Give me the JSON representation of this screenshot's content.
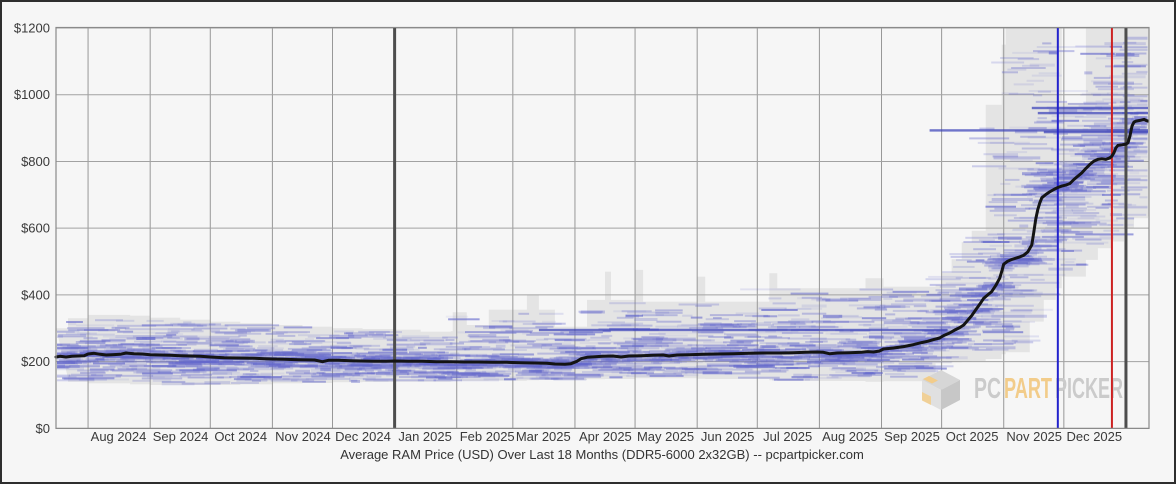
{
  "title": "Average RAM Price (USD) Over Last 18 Months (DDR5-6000 2x32GB) -- pcpartpicker.com",
  "watermark": {
    "pc": "PC",
    "part": "PART",
    "picker": "PICKER"
  },
  "colors": {
    "background": "#f6f6f6",
    "frame_border": "#2e2e2e",
    "grid": "#979797",
    "grid_h": "#a2a2a2",
    "plot_border": "#8a8a8a",
    "axis_text": "#3a3a3a",
    "avg_line": "#141414",
    "band": "#000000",
    "band_opacity": 0.072,
    "tick": "#6468cc",
    "tick_strong": "#3a41b8",
    "year_line": "#4d4d4d",
    "blue_marker": "#2222cc",
    "red_marker": "#cc2222",
    "watermark_gray": "#cbcbcb",
    "watermark_orange": "#f2cc8a"
  },
  "chart_data": {
    "type": "line",
    "title": "Average RAM Price (USD) Over Last 18 Months (DDR5-6000 2x32GB) -- pcpartpicker.com",
    "x_tick_labels": [
      "Aug 2024",
      "Sep 2024",
      "Oct 2024",
      "Nov 2024",
      "Dec 2024",
      "Jan 2025",
      "Feb 2025",
      "Mar 2025",
      "Apr 2025",
      "May 2025",
      "Jun 2025",
      "Jul 2025",
      "Aug 2025",
      "Sep 2025",
      "Oct 2025",
      "Nov 2025",
      "Dec 2025"
    ],
    "y_tick_labels": [
      "$0",
      "$200",
      "$400",
      "$600",
      "$800",
      "$1000",
      "$1200"
    ],
    "ylim": [
      0,
      1200
    ],
    "y_tick_step": 200,
    "x_unit": "days from chart start (mid-Jul 2024), 546 days total",
    "month_boundary_days": [
      17,
      48,
      78,
      109,
      139,
      170,
      201,
      229,
      260,
      290,
      321,
      351,
      382,
      413,
      443,
      474,
      504,
      535
    ],
    "grid": true,
    "legend": "none",
    "series": [
      {
        "name": "average price (USD)",
        "type": "line",
        "points": [
          [
            1,
            214
          ],
          [
            3,
            216
          ],
          [
            6,
            214
          ],
          [
            9,
            216
          ],
          [
            12,
            217
          ],
          [
            15,
            218
          ],
          [
            17,
            223
          ],
          [
            20,
            225
          ],
          [
            23,
            222
          ],
          [
            26,
            220
          ],
          [
            29,
            221
          ],
          [
            33,
            222
          ],
          [
            36,
            226
          ],
          [
            40,
            224
          ],
          [
            44,
            223
          ],
          [
            48,
            221
          ],
          [
            53,
            220
          ],
          [
            58,
            219
          ],
          [
            63,
            218
          ],
          [
            68,
            217
          ],
          [
            73,
            216
          ],
          [
            78,
            214
          ],
          [
            85,
            212
          ],
          [
            92,
            211
          ],
          [
            100,
            210
          ],
          [
            105,
            209
          ],
          [
            109,
            208
          ],
          [
            115,
            207
          ],
          [
            122,
            206
          ],
          [
            130,
            205
          ],
          [
            134,
            200
          ],
          [
            137,
            204
          ],
          [
            142,
            204
          ],
          [
            148,
            203
          ],
          [
            153,
            202
          ],
          [
            160,
            201
          ],
          [
            166,
            201
          ],
          [
            170,
            202
          ],
          [
            177,
            201
          ],
          [
            184,
            201
          ],
          [
            191,
            200
          ],
          [
            198,
            200
          ],
          [
            205,
            199
          ],
          [
            212,
            199
          ],
          [
            219,
            198
          ],
          [
            226,
            198
          ],
          [
            233,
            197
          ],
          [
            240,
            196
          ],
          [
            246,
            195
          ],
          [
            250,
            193
          ],
          [
            255,
            192
          ],
          [
            258,
            194
          ],
          [
            261,
            201
          ],
          [
            263,
            209
          ],
          [
            266,
            213
          ],
          [
            270,
            215
          ],
          [
            274,
            216
          ],
          [
            279,
            217
          ],
          [
            283,
            214
          ],
          [
            287,
            217
          ],
          [
            293,
            218
          ],
          [
            299,
            219
          ],
          [
            304,
            220
          ],
          [
            307,
            217
          ],
          [
            311,
            220
          ],
          [
            317,
            221
          ],
          [
            324,
            222
          ],
          [
            331,
            223
          ],
          [
            339,
            224
          ],
          [
            347,
            225
          ],
          [
            355,
            226
          ],
          [
            363,
            226
          ],
          [
            369,
            227
          ],
          [
            375,
            228
          ],
          [
            381,
            229
          ],
          [
            384,
            228
          ],
          [
            387,
            224
          ],
          [
            391,
            226
          ],
          [
            397,
            227
          ],
          [
            403,
            228
          ],
          [
            406,
            230
          ],
          [
            409,
            229
          ],
          [
            412,
            232
          ],
          [
            414,
            238
          ],
          [
            419,
            241
          ],
          [
            424,
            245
          ],
          [
            429,
            251
          ],
          [
            433,
            257
          ],
          [
            436,
            261
          ],
          [
            439,
            266
          ],
          [
            442,
            271
          ],
          [
            444,
            278
          ],
          [
            447,
            286
          ],
          [
            450,
            296
          ],
          [
            452,
            302
          ],
          [
            454,
            310
          ],
          [
            456,
            324
          ],
          [
            458,
            338
          ],
          [
            460,
            355
          ],
          [
            462,
            372
          ],
          [
            464,
            390
          ],
          [
            466,
            400
          ],
          [
            468,
            410
          ],
          [
            470,
            428
          ],
          [
            472,
            450
          ],
          [
            473,
            470
          ],
          [
            474,
            492
          ],
          [
            476,
            501
          ],
          [
            478,
            506
          ],
          [
            480,
            510
          ],
          [
            482,
            514
          ],
          [
            484,
            519
          ],
          [
            486,
            529
          ],
          [
            488,
            550
          ],
          [
            489,
            588
          ],
          [
            490,
            628
          ],
          [
            491,
            656
          ],
          [
            492,
            676
          ],
          [
            493,
            691
          ],
          [
            495,
            701
          ],
          [
            497,
            709
          ],
          [
            499,
            716
          ],
          [
            501,
            722
          ],
          [
            503,
            726
          ],
          [
            505,
            729
          ],
          [
            507,
            734
          ],
          [
            509,
            746
          ],
          [
            511,
            756
          ],
          [
            513,
            766
          ],
          [
            515,
            779
          ],
          [
            517,
            791
          ],
          [
            519,
            801
          ],
          [
            521,
            806
          ],
          [
            523,
            808
          ],
          [
            525,
            806
          ],
          [
            527,
            811
          ],
          [
            528,
            816
          ],
          [
            529,
            826
          ],
          [
            530,
            841
          ],
          [
            531,
            848
          ],
          [
            533,
            850
          ],
          [
            535,
            852
          ],
          [
            536,
            856
          ],
          [
            537,
            877
          ],
          [
            538,
            906
          ],
          [
            539,
            918
          ],
          [
            540,
            921
          ],
          [
            542,
            923
          ],
          [
            544,
            926
          ],
          [
            545,
            923
          ],
          [
            546,
            921
          ]
        ]
      },
      {
        "name": "min-max listing price range (USD)",
        "type": "band",
        "points": [
          [
            1,
            150,
            300
          ],
          [
            7,
            140,
            330
          ],
          [
            17,
            135,
            340
          ],
          [
            38,
            132,
            338
          ],
          [
            48,
            130,
            332
          ],
          [
            63,
            130,
            326
          ],
          [
            78,
            130,
            320
          ],
          [
            93,
            132,
            315
          ],
          [
            109,
            135,
            310
          ],
          [
            124,
            136,
            305
          ],
          [
            139,
            138,
            300
          ],
          [
            154,
            139,
            298
          ],
          [
            170,
            140,
            296
          ],
          [
            183,
            140,
            290
          ],
          [
            198,
            141,
            291
          ],
          [
            199,
            142,
            348
          ],
          [
            206,
            142,
            310
          ],
          [
            217,
            143,
            356
          ],
          [
            236,
            144,
            400
          ],
          [
            242,
            145,
            356
          ],
          [
            250,
            145,
            305
          ],
          [
            266,
            147,
            385
          ],
          [
            275,
            148,
            470
          ],
          [
            278,
            148,
            385
          ],
          [
            290,
            150,
            475
          ],
          [
            294,
            150,
            380
          ],
          [
            321,
            149,
            455
          ],
          [
            325,
            148,
            380
          ],
          [
            357,
            144,
            465
          ],
          [
            361,
            142,
            420
          ],
          [
            405,
            140,
            450
          ],
          [
            414,
            141,
            425
          ],
          [
            440,
            195,
            430
          ],
          [
            443,
            195,
            467
          ],
          [
            448,
            198,
            507
          ],
          [
            453,
            200,
            558
          ],
          [
            458,
            202,
            592
          ],
          [
            465,
            208,
            970
          ],
          [
            473,
            222,
            1150
          ],
          [
            475,
            228,
            1205
          ],
          [
            487,
            320,
            1205
          ],
          [
            494,
            385,
            1205
          ],
          [
            500,
            420,
            1205
          ],
          [
            503,
            455,
            975
          ],
          [
            515,
            505,
            1205
          ],
          [
            521,
            540,
            1205
          ],
          [
            528,
            560,
            1205
          ],
          [
            534,
            600,
            1205
          ],
          [
            539,
            630,
            1205
          ],
          [
            546,
            635,
            1205
          ]
        ]
      }
    ],
    "event_lines": [
      {
        "day": 170,
        "kind": "year-start"
      },
      {
        "day": 501,
        "kind": "blue-marker"
      },
      {
        "day": 528,
        "kind": "red-marker"
      },
      {
        "day": 535,
        "kind": "year-start"
      }
    ],
    "long_listing_ticks": [
      {
        "d1": 242,
        "d2": 446,
        "price": 295
      },
      {
        "d1": 437,
        "d2": 546,
        "price": 893
      },
      {
        "d1": 488,
        "d2": 546,
        "price": 960
      },
      {
        "d1": 491,
        "d2": 546,
        "price": 945
      },
      {
        "d1": 494,
        "d2": 546,
        "price": 888
      }
    ]
  }
}
